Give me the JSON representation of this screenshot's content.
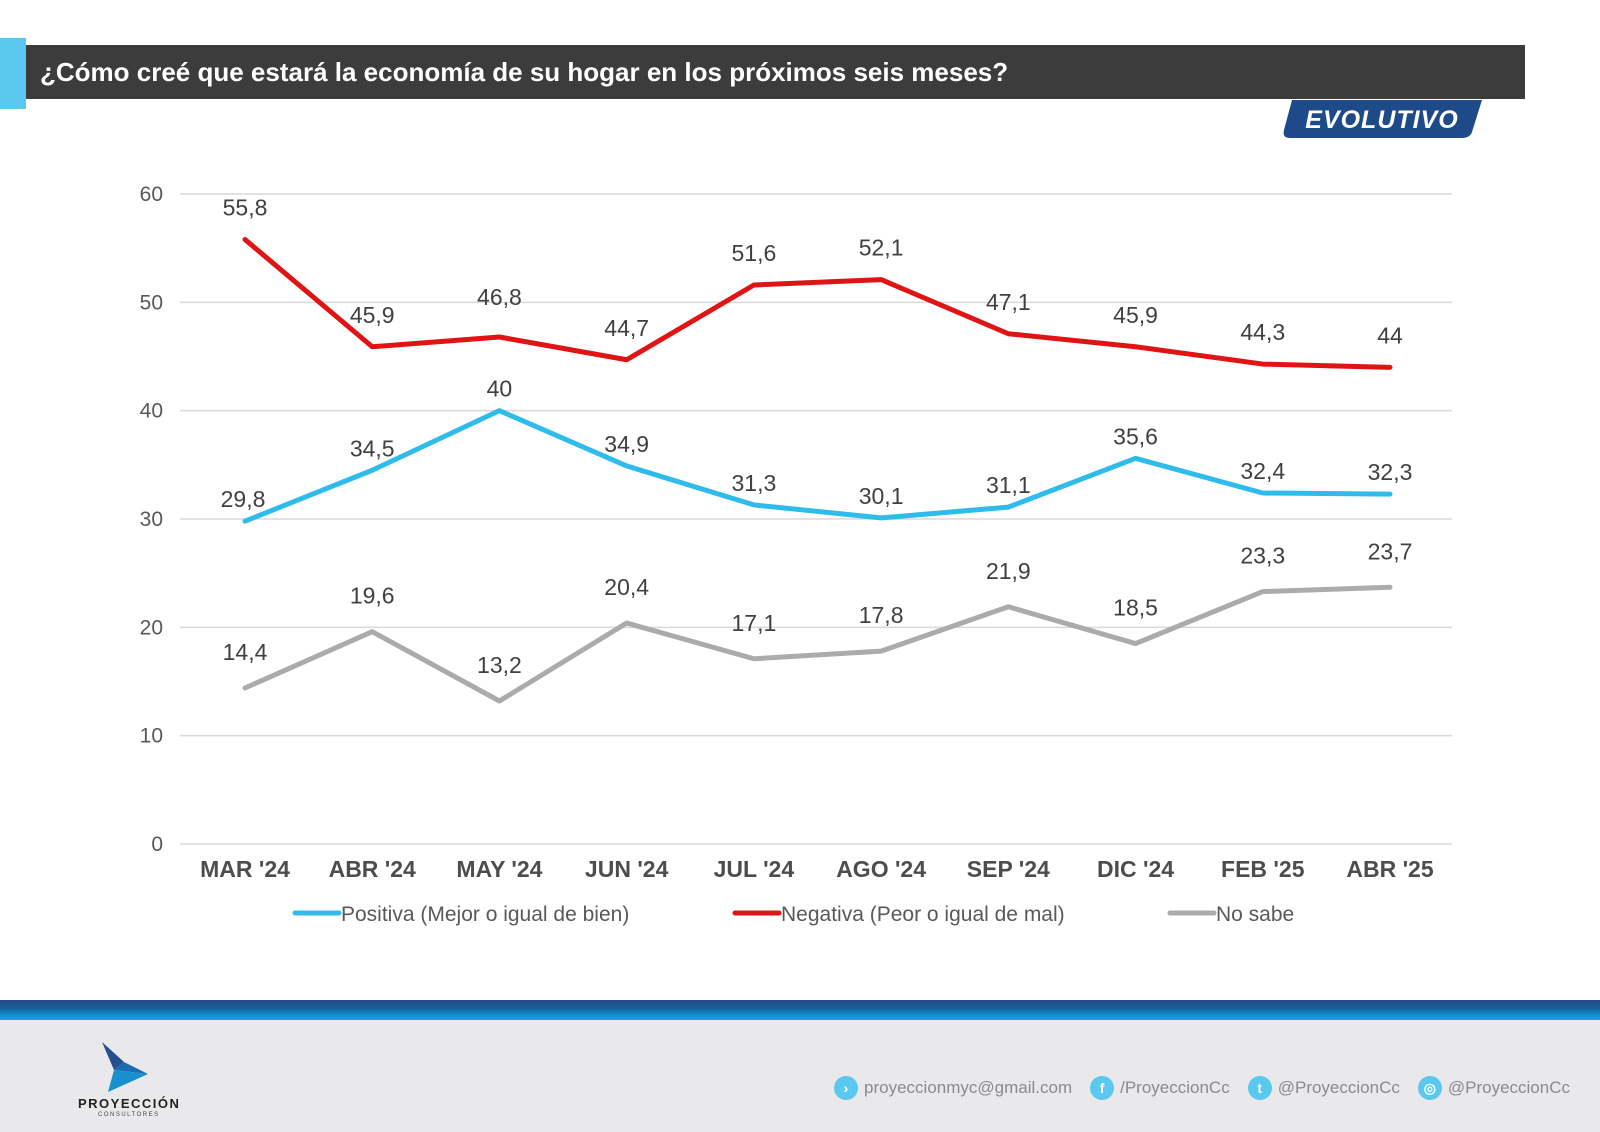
{
  "header": {
    "title": "¿Cómo creé que estará la economía de su hogar en los próximos seis meses?",
    "badge": "EVOLUTIVO"
  },
  "colors": {
    "accent": "#5bc8ef",
    "title_bg": "#3c3c3c",
    "badge_bg": "#1f4a8a",
    "positiva": "#2fbcea",
    "negativa": "#e01414",
    "no_sabe": "#ababab"
  },
  "chart_data": {
    "type": "line",
    "title": "¿Cómo creé que estará la economía de su hogar en los próximos seis meses?",
    "xlabel": "",
    "ylabel": "",
    "ylim": [
      0,
      60
    ],
    "yticks": [
      0,
      10,
      20,
      30,
      40,
      50,
      60
    ],
    "grid": true,
    "legend_position": "bottom",
    "categories": [
      "MAR '24",
      "ABR '24",
      "MAY '24",
      "JUN '24",
      "JUL '24",
      "AGO '24",
      "SEP '24",
      "DIC '24",
      "FEB '25",
      "ABR '25"
    ],
    "series": [
      {
        "name": "Positiva (Mejor o igual de bien)",
        "color": "#2fbcea",
        "values": [
          29.8,
          34.5,
          40,
          34.9,
          31.3,
          30.1,
          31.1,
          35.6,
          32.4,
          32.3
        ],
        "labels": [
          "29,8",
          "34,5",
          "40",
          "34,9",
          "31,3",
          "30,1",
          "31,1",
          "35,6",
          "32,4",
          "32,3"
        ]
      },
      {
        "name": "Negativa (Peor o igual de mal)",
        "color": "#e01414",
        "values": [
          55.8,
          45.9,
          46.8,
          44.7,
          51.6,
          52.1,
          47.1,
          45.9,
          44.3,
          44
        ],
        "labels": [
          "55,8",
          "45,9",
          "46,8",
          "44,7",
          "51,6",
          "52,1",
          "47,1",
          "45,9",
          "44,3",
          "44"
        ]
      },
      {
        "name": "No sabe",
        "color": "#ababab",
        "values": [
          14.4,
          19.6,
          13.2,
          20.4,
          17.1,
          17.8,
          21.9,
          18.5,
          23.3,
          23.7
        ],
        "labels": [
          "14,4",
          "19,6",
          "13,2",
          "20,4",
          "17,1",
          "17,8",
          "21,9",
          "18,5",
          "23,3",
          "23,7"
        ]
      }
    ]
  },
  "footer": {
    "brand": "PROYECCIÓN",
    "brand_sub": "CONSULTORES",
    "contacts": [
      {
        "icon": "email-arrow-icon",
        "glyph": "›",
        "text": "proyeccionmyc@gmail.com"
      },
      {
        "icon": "facebook-icon",
        "glyph": "f",
        "text": "/ProyeccionCc"
      },
      {
        "icon": "twitter-icon",
        "glyph": "t",
        "text": "@ProyeccionCc"
      },
      {
        "icon": "instagram-icon",
        "glyph": "◎",
        "text": "@ProyeccionCc"
      }
    ]
  }
}
